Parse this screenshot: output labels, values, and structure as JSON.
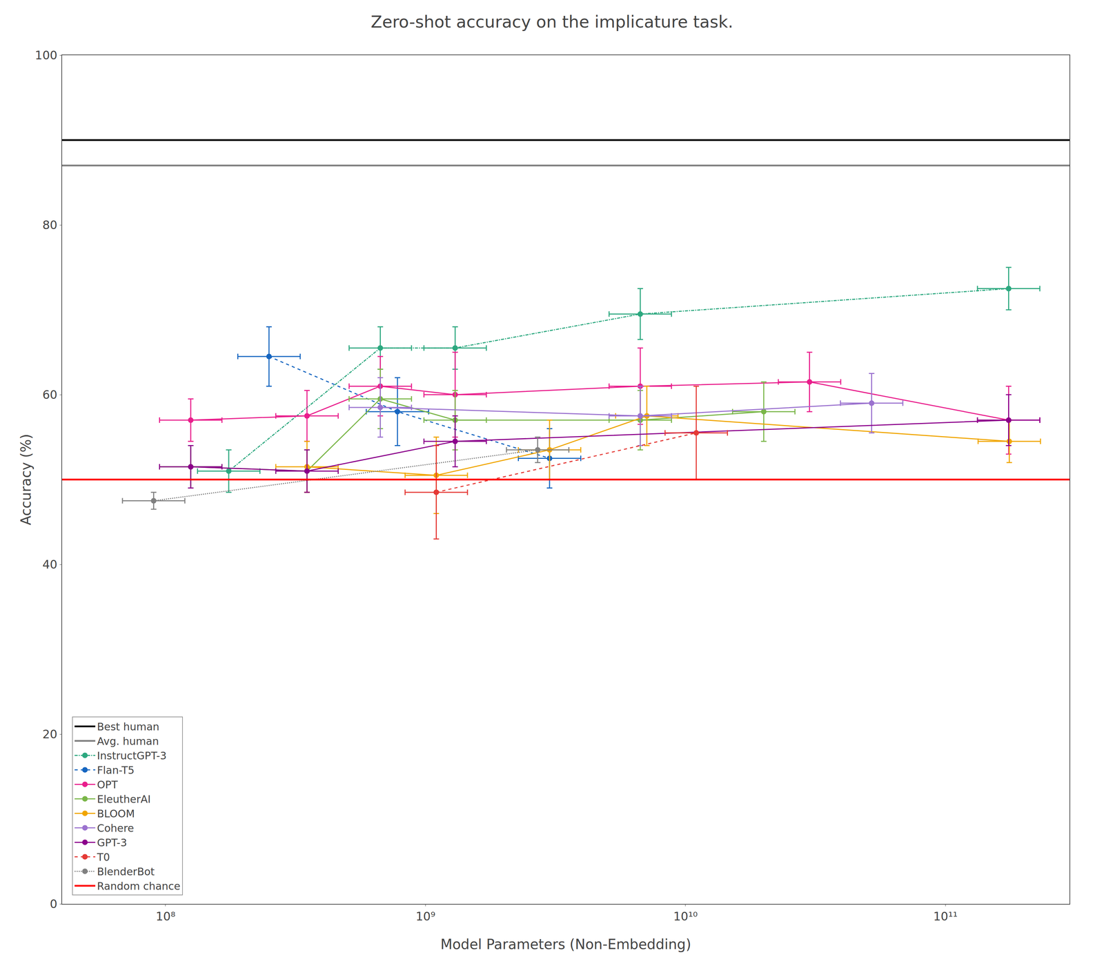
{
  "chart_data": {
    "type": "line",
    "title": "Zero-shot accuracy on the implicature task.",
    "x_label": "Model Parameters (Non-Embedding)",
    "y_label": "Accuracy (%)",
    "log": "x",
    "xlim": [
      40000000.0,
      300000000000.0
    ],
    "ylim": [
      0,
      100
    ],
    "xticks": [
      {
        "value": 100000000,
        "label": "10⁸"
      },
      {
        "value": 1000000000,
        "label": "10⁹"
      },
      {
        "value": 10000000000,
        "label": "10¹⁰"
      },
      {
        "value": 100000000000,
        "label": "10¹¹"
      }
    ],
    "yticks": [
      0,
      20,
      40,
      60,
      80,
      100
    ],
    "grid": false,
    "legend": "lower left",
    "series": [
      {
        "name": "Best human",
        "type": "hline",
        "color": "black",
        "line_style": "solid",
        "values": [
          90
        ]
      },
      {
        "name": "Avg. human",
        "type": "hline",
        "color": "gray",
        "line_style": "solid",
        "values": [
          87
        ]
      },
      {
        "name": "InstructGPT-3",
        "color": "#2ca87f",
        "line_style": "dashdot",
        "marker": "circle",
        "x": [
          175000000.0,
          670000000.0,
          1300000000.0,
          6700000000.0,
          175000000000.0
        ],
        "values": [
          51.0,
          65.5,
          65.5,
          69.5,
          72.5
        ],
        "yerr": [
          2.5,
          2.5,
          2.5,
          3.0,
          2.5
        ],
        "xerr_minus": [
          42248924,
          161753025,
          313849153,
          1617530248,
          42248924375
        ],
        "xerr_plus": [
          55694929,
          213232015,
          413733761,
          2132320151,
          55694929325
        ]
      },
      {
        "name": "Flan-T5",
        "color": "#1565c0",
        "line_style": "dashed",
        "marker": "circle",
        "x": [
          250000000.0,
          780000000.0,
          3000000000.0
        ],
        "values": [
          64.5,
          58.0,
          52.5
        ],
        "yerr": [
          3.5,
          4.0,
          3.5
        ],
        "xerr_minus": [
          60355606,
          188309492,
          724267275
        ],
        "xerr_plus": [
          79564185,
          248240256,
          954770217
        ]
      },
      {
        "name": "OPT",
        "color": "#e91e8c",
        "line_style": "solid",
        "marker": "circle",
        "x": [
          125000000.0,
          350000000.0,
          670000000.0,
          1300000000.0,
          6700000000.0,
          30000000000.0,
          175000000000.0
        ],
        "values": [
          57.0,
          57.5,
          61.0,
          60.0,
          61.0,
          61.5,
          57.0
        ],
        "yerr": [
          2.5,
          3.0,
          3.5,
          5.0,
          4.5,
          3.5,
          4.0
        ],
        "xerr_minus": [
          30177803,
          84497849,
          161753025,
          313849153,
          1617530248,
          7242672750,
          42248924375
        ],
        "xerr_plus": [
          39782092,
          111389859,
          213232015,
          413733761,
          2132320151,
          9547702170,
          55694929325
        ]
      },
      {
        "name": "EleutherAI",
        "color": "#7ab648",
        "line_style": "solid",
        "marker": "circle",
        "x": [
          125000000.0,
          350000000.0,
          670000000.0,
          1300000000.0,
          6700000000.0,
          20000000000.0
        ],
        "values": [
          51.5,
          51.0,
          59.5,
          57.0,
          57.0,
          58.0
        ],
        "yerr": [
          2.5,
          2.5,
          3.5,
          3.5,
          3.5,
          3.5
        ],
        "xerr_minus": [
          30177803,
          84497849,
          161753025,
          313849153,
          1617530248,
          4828448500
        ],
        "xerr_plus": [
          39782092,
          111389859,
          213232015,
          413733761,
          2132320151,
          6365134780
        ]
      },
      {
        "name": "BLOOM",
        "color": "#f0a500",
        "line_style": "solid",
        "marker": "circle",
        "x": [
          350000000.0,
          1100000000.0,
          3000000000.0,
          7100000000.0,
          176000000000.0
        ],
        "values": [
          51.5,
          50.5,
          53.5,
          57.5,
          54.5
        ],
        "yerr": [
          3.0,
          4.5,
          3.5,
          3.5,
          2.5
        ],
        "xerr_minus": [
          84497849,
          265564668,
          724267275,
          1714099218,
          42490346800
        ],
        "xerr_plus": [
          111389859,
          350082413,
          954770217,
          2259622847,
          56013186100
        ]
      },
      {
        "name": "Cohere",
        "color": "#9b72cf",
        "line_style": "solid",
        "marker": "circle",
        "x": [
          670000000.0,
          6700000000.0,
          52000000000.0
        ],
        "values": [
          58.5,
          57.5,
          59.0
        ],
        "yerr": [
          3.5,
          3.5,
          3.5
        ],
        "xerr_minus": [
          161753025,
          1617530248,
          12553966100
        ],
        "xerr_plus": [
          213232015,
          2132320151,
          16549350430
        ]
      },
      {
        "name": "GPT-3",
        "color": "#8b008b",
        "line_style": "solid",
        "marker": "circle",
        "x": [
          125000000.0,
          350000000.0,
          1300000000.0,
          175000000000.0
        ],
        "values": [
          51.5,
          51.0,
          54.5,
          57.0
        ],
        "yerr": [
          2.5,
          2.5,
          3.0,
          3.0
        ],
        "xerr_minus": [
          30177803,
          84497849,
          313849153,
          42248924375
        ],
        "xerr_plus": [
          39782092,
          111389859,
          413733761,
          55694929325
        ]
      },
      {
        "name": "T0",
        "color": "#e53935",
        "line_style": "dashed",
        "marker": "circle",
        "x": [
          1100000000.0,
          11000000000.0
        ],
        "values": [
          48.5,
          55.5
        ],
        "yerr": [
          5.5,
          5.5
        ],
        "xerr_minus": [
          265564668,
          2655646675
        ],
        "xerr_plus": [
          350082413,
          3500824129
        ]
      },
      {
        "name": "BlenderBot",
        "color": "#808080",
        "line_style": "dotted",
        "marker": "circle",
        "x": [
          90000000.0,
          2700000000.0
        ],
        "values": [
          47.5,
          53.5
        ],
        "yerr": [
          1.0,
          1.5
        ],
        "xerr_minus": [
          21728018,
          651840548
        ],
        "xerr_plus": [
          28643107,
          859293195
        ]
      },
      {
        "name": "Random chance",
        "type": "hline",
        "color": "red",
        "line_style": "solid",
        "values": [
          50
        ]
      }
    ]
  }
}
